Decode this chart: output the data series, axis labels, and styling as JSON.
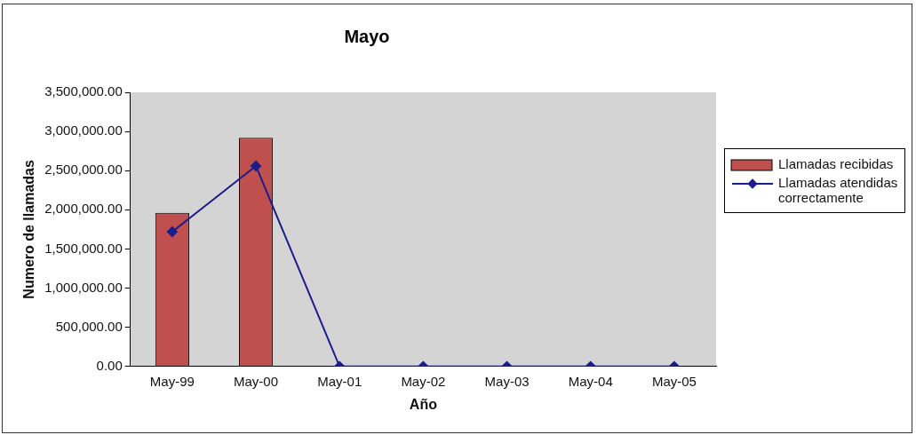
{
  "chart_data": {
    "type": "bar",
    "title": "Mayo",
    "xlabel": "Año",
    "ylabel": "Numero de llamadas",
    "categories": [
      "May-99",
      "May-00",
      "May-01",
      "May-02",
      "May-03",
      "May-04",
      "May-05"
    ],
    "series": [
      {
        "name": "Llamadas recibidas",
        "color": "#c0504d",
        "values": [
          1960000,
          2920000,
          0,
          0,
          0,
          0,
          0
        ]
      },
      {
        "name": "Llamadas atendidas correctamente",
        "type": "line",
        "color": "#1c1c8c",
        "values": [
          1720000,
          2560000,
          0,
          0,
          0,
          0,
          0
        ]
      }
    ],
    "ylim": [
      0,
      3500000
    ],
    "yticks": [
      {
        "value": 0,
        "label": "0.00"
      },
      {
        "value": 500000,
        "label": "500,000.00"
      },
      {
        "value": 1000000,
        "label": "1,000,000.00"
      },
      {
        "value": 1500000,
        "label": "1,500,000.00"
      },
      {
        "value": 2000000,
        "label": "2,000,000.00"
      },
      {
        "value": 2500000,
        "label": "2,500,000.00"
      },
      {
        "value": 3000000,
        "label": "3,000,000.00"
      },
      {
        "value": 3500000,
        "label": "3,500,000.00"
      }
    ],
    "grid": false,
    "legend": "right",
    "marker": "diamond"
  }
}
